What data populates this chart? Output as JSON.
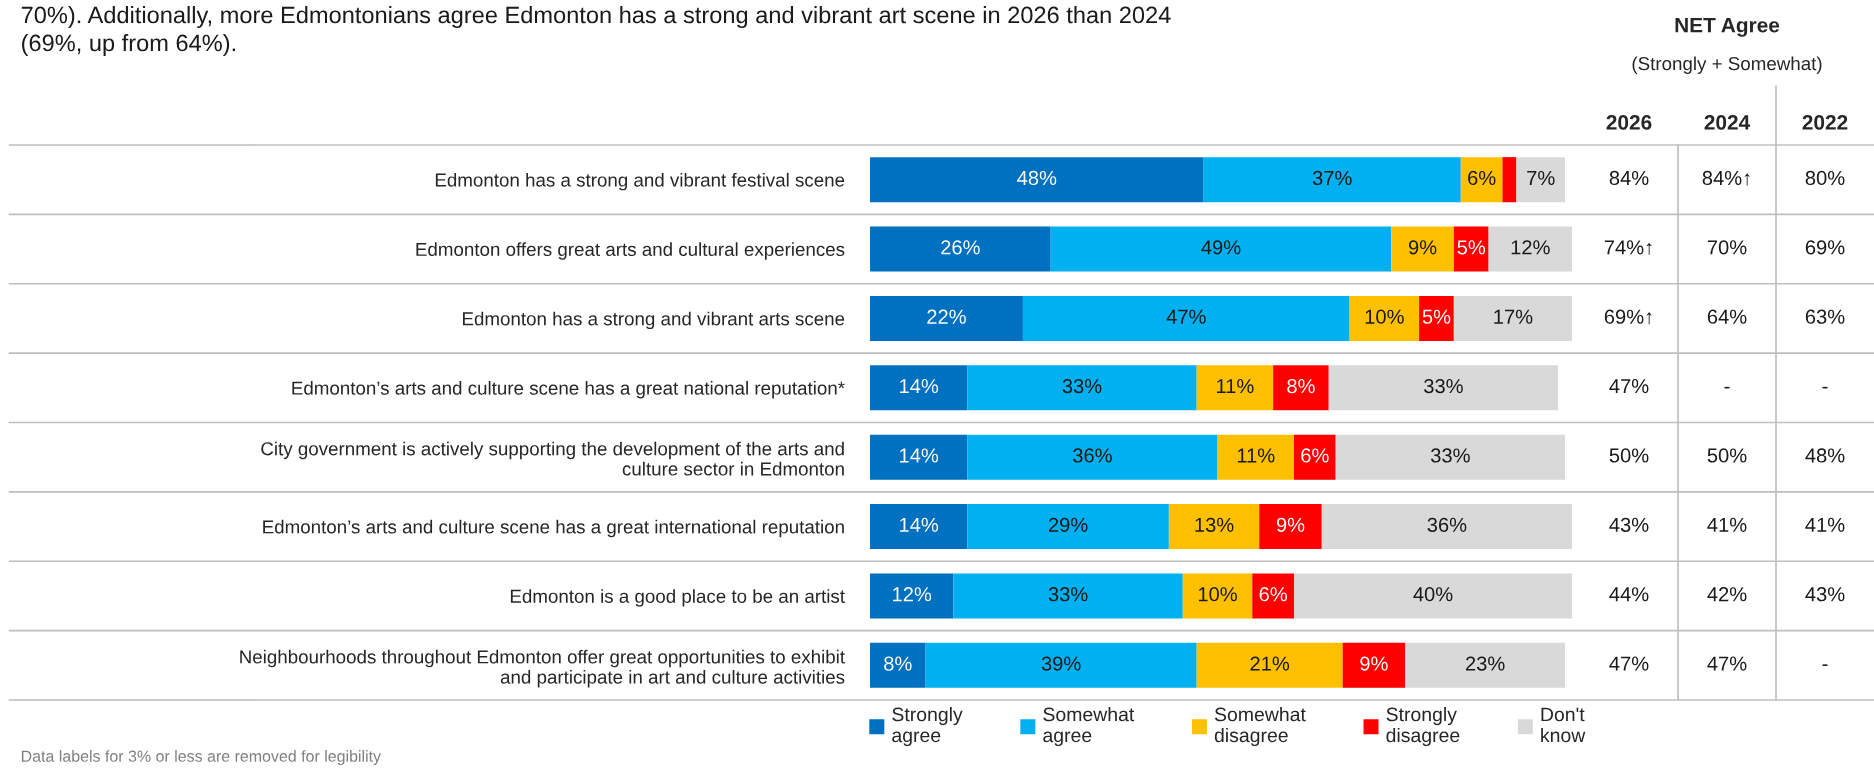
{
  "chart_data": [
    {
      "type": "bar",
      "orientation": "horizontal",
      "stacked": true,
      "legend": "bottom",
      "categories": [
        "Edmonton has a strong and vibrant festival scene",
        "Edmonton offers great arts and cultural experiences",
        "Edmonton has a strong and vibrant arts scene",
        "Edmonton’s arts and culture scene has a great national reputation*",
        "City government is actively supporting the development of the arts and\nculture sector in Edmonton",
        "Edmonton’s arts and culture scene has a great international reputation",
        "Edmonton is a good place to be an artist",
        "Neighbourhoods throughout Edmonton offer great opportunities to exhibit\nand participate in art and culture activities"
      ],
      "series": [
        {
          "name": "Strongly\nagree",
          "color": "#0070c0",
          "values": [
            48,
            26,
            22,
            14,
            14,
            14,
            12,
            8
          ],
          "value_labels": [
            "48%",
            "26%",
            "22%",
            "14%",
            "14%",
            "14%",
            "12%",
            "8%"
          ]
        },
        {
          "name": "Somewhat\nagree",
          "color": "#00b0f0",
          "values": [
            37,
            49,
            47,
            33,
            36,
            29,
            33,
            39
          ],
          "value_labels": [
            "37%",
            "49%",
            "47%",
            "33%",
            "36%",
            "29%",
            "33%",
            "39%"
          ]
        },
        {
          "name": "Somewhat\ndisagree",
          "color": "#ffc000",
          "values": [
            6,
            9,
            10,
            11,
            11,
            13,
            10,
            21
          ],
          "value_labels": [
            "6%",
            "9%",
            "10%",
            "11%",
            "11%",
            "13%",
            "10%",
            "21%"
          ]
        },
        {
          "name": "Strongly\ndisagree",
          "color": "#ff0000",
          "values": [
            2,
            5,
            5,
            8,
            6,
            9,
            6,
            9
          ],
          "value_labels": [
            null,
            "5%",
            "5%",
            "8%",
            "6%",
            "9%",
            "6%",
            "9%"
          ]
        },
        {
          "name": "Don't\nknow",
          "color": "#d9d9d9",
          "values": [
            7,
            12,
            17,
            33,
            33,
            36,
            40,
            23
          ],
          "value_labels": [
            "7%",
            "12%",
            "17%",
            "33%",
            "33%",
            "36%",
            "40%",
            "23%"
          ]
        }
      ],
      "annotations": [
        "70%). Additionally, more Edmontonians agree Edmonton has a strong and vibrant art scene in 2026 than 2024\n(69%, up from 64%).",
        "Data labels for 3% or less are removed for legibility"
      ]
    },
    {
      "type": "other",
      "title": "NET Agree",
      "subtitle": "(Strongly + Somewhat)",
      "categories": [
        "2026",
        "2024",
        "2022"
      ],
      "cell_labels": [
        [
          "84%",
          "84%↑",
          "80%"
        ],
        [
          "74%↑",
          "70%",
          "69%"
        ],
        [
          "69%↑",
          "64%",
          "63%"
        ],
        [
          "47%",
          "-",
          "-"
        ],
        [
          "50%",
          "50%",
          "48%"
        ],
        [
          "43%",
          "41%",
          "41%"
        ],
        [
          "44%",
          "42%",
          "43%"
        ],
        [
          "47%",
          "47%",
          "-"
        ]
      ]
    }
  ]
}
